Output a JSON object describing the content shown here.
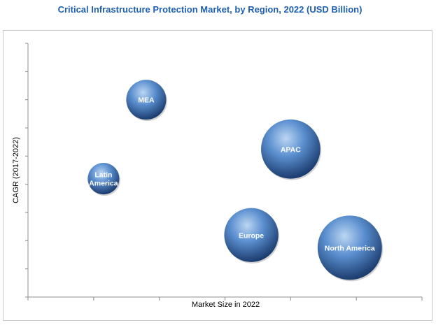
{
  "chart_data": {
    "type": "bubble",
    "title": "Critical Infrastructure Protection Market, by Region, 2022 (USD Billion)",
    "xlabel": "Market Size in 2022",
    "ylabel": "CAGR (2017-2022)",
    "xlim": [
      0,
      6
    ],
    "ylim": [
      0,
      9
    ],
    "grid": false,
    "legend": "none",
    "colors": {
      "bubble_light": "#bcd6f2",
      "bubble_mid": "#5b8fcf",
      "bubble_dark": "#1b3c6e",
      "title": "#1f5fae",
      "axis": "#8c8c8c"
    },
    "points": [
      {
        "label": "North America",
        "x": 4.9,
        "y": 1.75,
        "size": 1.0
      },
      {
        "label": "Europe",
        "x": 3.4,
        "y": 2.2,
        "size": 0.84
      },
      {
        "label": "APAC",
        "x": 4.0,
        "y": 5.25,
        "size": 0.92
      },
      {
        "label": "MEA",
        "x": 1.8,
        "y": 7.0,
        "size": 0.62
      },
      {
        "label": "Latin America",
        "x": 1.15,
        "y": 4.2,
        "size": 0.49
      }
    ]
  }
}
